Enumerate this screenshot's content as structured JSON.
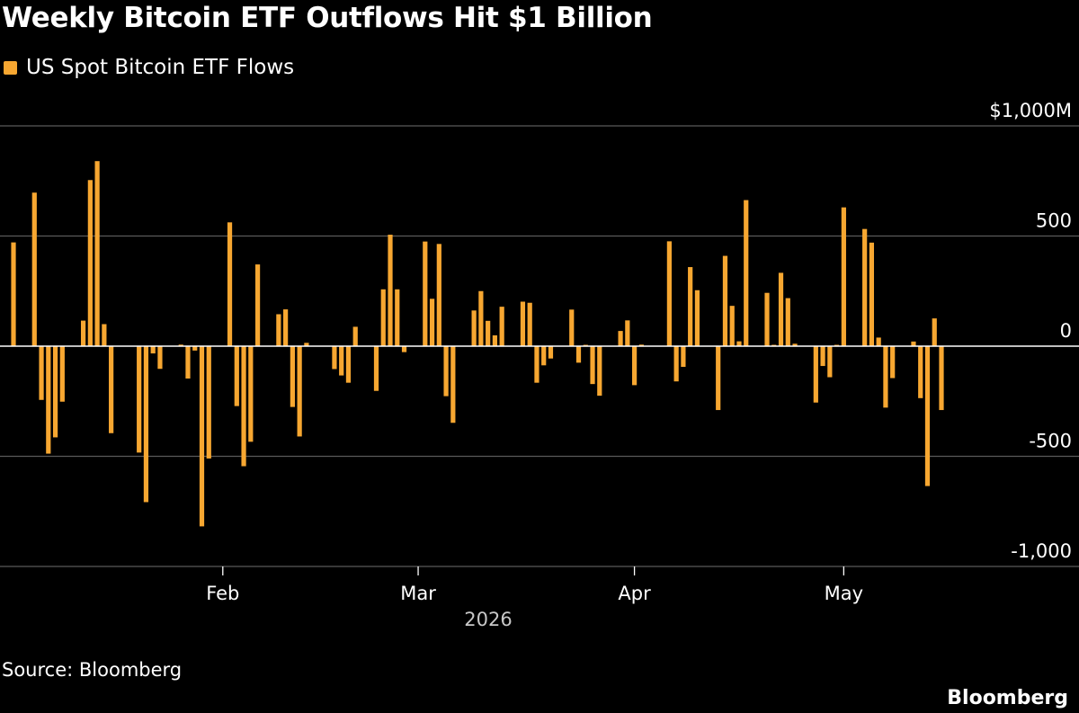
{
  "title": "Weekly Bitcoin ETF Outflows Hit $1 Billion",
  "source": "Source: Bloomberg",
  "brand": "Bloomberg",
  "colors": {
    "background": "#000000",
    "bar": "#f7a731",
    "grid": "#5a5a5a",
    "zero_line": "#ffffff",
    "text": "#ffffff",
    "muted_text": "#c8c8c8"
  },
  "chart_data": {
    "type": "bar",
    "legend": {
      "position": "top-left",
      "entries": [
        "US Spot Bitcoin ETF Flows"
      ]
    },
    "ylim": [
      -1000,
      1000
    ],
    "y_ticks": [
      {
        "value": 1000,
        "label": "$1,000M"
      },
      {
        "value": 500,
        "label": "500"
      },
      {
        "value": 0,
        "label": "0"
      },
      {
        "value": -500,
        "label": "-500"
      },
      {
        "value": -1000,
        "label": "-1,000"
      }
    ],
    "x_start": "2026-01-02",
    "x_end": "2026-05-15",
    "x_ticks": [
      {
        "date": "2026-02-01",
        "label": "Feb"
      },
      {
        "date": "2026-03-01",
        "label": "Mar"
      },
      {
        "date": "2026-04-01",
        "label": "Apr"
      },
      {
        "date": "2026-05-01",
        "label": "May"
      }
    ],
    "x_axis_year": "2026",
    "grid": true,
    "series": [
      {
        "name": "US Spot Bitcoin ETF Flows",
        "points": [
          [
            "2026-01-02",
            471
          ],
          [
            "2026-01-05",
            697
          ],
          [
            "2026-01-06",
            -244
          ],
          [
            "2026-01-07",
            -488
          ],
          [
            "2026-01-08",
            -414
          ],
          [
            "2026-01-09",
            -252
          ],
          [
            "2026-01-12",
            116
          ],
          [
            "2026-01-13",
            754
          ],
          [
            "2026-01-14",
            840
          ],
          [
            "2026-01-15",
            100
          ],
          [
            "2026-01-16",
            -395
          ],
          [
            "2026-01-20",
            -483
          ],
          [
            "2026-01-21",
            -708
          ],
          [
            "2026-01-22",
            -33
          ],
          [
            "2026-01-23",
            -103
          ],
          [
            "2026-01-26",
            7
          ],
          [
            "2026-01-27",
            -147
          ],
          [
            "2026-01-28",
            -20
          ],
          [
            "2026-01-29",
            -818
          ],
          [
            "2026-01-30",
            -510
          ],
          [
            "2026-02-02",
            562
          ],
          [
            "2026-02-03",
            -272
          ],
          [
            "2026-02-04",
            -545
          ],
          [
            "2026-02-05",
            -434
          ],
          [
            "2026-02-06",
            371
          ],
          [
            "2026-02-09",
            145
          ],
          [
            "2026-02-10",
            167
          ],
          [
            "2026-02-11",
            -276
          ],
          [
            "2026-02-12",
            -410
          ],
          [
            "2026-02-13",
            15
          ],
          [
            "2026-02-17",
            -104
          ],
          [
            "2026-02-18",
            -133
          ],
          [
            "2026-02-19",
            -166
          ],
          [
            "2026-02-20",
            88
          ],
          [
            "2026-02-23",
            -203
          ],
          [
            "2026-02-24",
            258
          ],
          [
            "2026-02-25",
            506
          ],
          [
            "2026-02-26",
            258
          ],
          [
            "2026-02-27",
            -27
          ],
          [
            "2026-03-02",
            475
          ],
          [
            "2026-03-03",
            215
          ],
          [
            "2026-03-04",
            464
          ],
          [
            "2026-03-05",
            -227
          ],
          [
            "2026-03-06",
            -348
          ],
          [
            "2026-03-09",
            162
          ],
          [
            "2026-03-10",
            250
          ],
          [
            "2026-03-11",
            115
          ],
          [
            "2026-03-12",
            49
          ],
          [
            "2026-03-13",
            179
          ],
          [
            "2026-03-16",
            202
          ],
          [
            "2026-03-17",
            197
          ],
          [
            "2026-03-18",
            -166
          ],
          [
            "2026-03-19",
            -87
          ],
          [
            "2026-03-20",
            -56
          ],
          [
            "2026-03-23",
            166
          ],
          [
            "2026-03-24",
            -75
          ],
          [
            "2026-03-25",
            6
          ],
          [
            "2026-03-26",
            -172
          ],
          [
            "2026-03-27",
            -225
          ],
          [
            "2026-03-30",
            69
          ],
          [
            "2026-03-31",
            117
          ],
          [
            "2026-04-01",
            -177
          ],
          [
            "2026-04-02",
            7
          ],
          [
            "2026-04-06",
            476
          ],
          [
            "2026-04-07",
            -160
          ],
          [
            "2026-04-08",
            -94
          ],
          [
            "2026-04-09",
            359
          ],
          [
            "2026-04-10",
            254
          ],
          [
            "2026-04-13",
            -290
          ],
          [
            "2026-04-14",
            410
          ],
          [
            "2026-04-15",
            183
          ],
          [
            "2026-04-16",
            22
          ],
          [
            "2026-04-17",
            663
          ],
          [
            "2026-04-20",
            242
          ],
          [
            "2026-04-21",
            6
          ],
          [
            "2026-04-22",
            333
          ],
          [
            "2026-04-23",
            218
          ],
          [
            "2026-04-24",
            11
          ],
          [
            "2026-04-27",
            -256
          ],
          [
            "2026-04-28",
            -90
          ],
          [
            "2026-04-29",
            -141
          ],
          [
            "2026-04-30",
            6
          ],
          [
            "2026-05-01",
            630
          ],
          [
            "2026-05-04",
            532
          ],
          [
            "2026-05-05",
            470
          ],
          [
            "2026-05-06",
            39
          ],
          [
            "2026-05-07",
            -279
          ],
          [
            "2026-05-08",
            -145
          ],
          [
            "2026-05-11",
            21
          ],
          [
            "2026-05-12",
            -236
          ],
          [
            "2026-05-13",
            -635
          ],
          [
            "2026-05-14",
            126
          ],
          [
            "2026-05-15",
            -290
          ]
        ]
      }
    ]
  }
}
